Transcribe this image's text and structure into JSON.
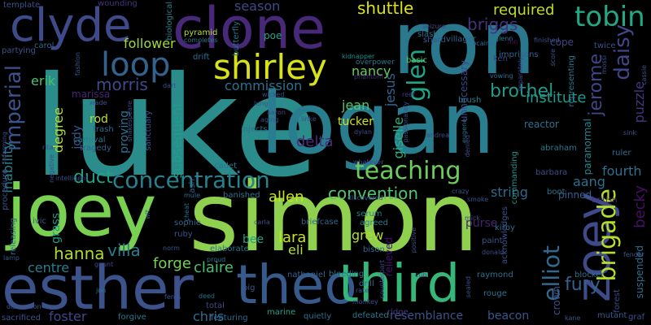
{
  "words": [
    {
      "text": "luke",
      "color": "#2b8c8c"
    },
    {
      "text": "simon",
      "color": "#8fd14f"
    },
    {
      "text": "logan",
      "color": "#287d8e"
    },
    {
      "text": "ron",
      "color": "#2a788e"
    },
    {
      "text": "joey",
      "color": "#7ad151"
    },
    {
      "text": "clone",
      "color": "#482878"
    },
    {
      "text": "clyde",
      "color": "#3e4a89"
    },
    {
      "text": "esther",
      "color": "#3b528b"
    },
    {
      "text": "theo",
      "color": "#375a8c"
    },
    {
      "text": "third",
      "color": "#35b779"
    },
    {
      "text": "zoey",
      "color": "#3e4a89"
    },
    {
      "text": "shirley",
      "color": "#d8e219"
    },
    {
      "text": "loop",
      "color": "#33638d"
    },
    {
      "text": "tobin",
      "color": "#22a884"
    },
    {
      "text": "concentration",
      "color": "#26828e"
    },
    {
      "text": "teaching",
      "color": "#6ccd5a"
    },
    {
      "text": "brigade",
      "color": "#b5de2b"
    },
    {
      "text": "elliot",
      "color": "#31688e"
    },
    {
      "text": "imperial",
      "color": "#3b528b"
    },
    {
      "text": "glen",
      "color": "#20a386"
    },
    {
      "text": "daisy",
      "color": "#404688"
    },
    {
      "text": "jerome",
      "color": "#414487"
    },
    {
      "text": "morris",
      "color": "#3e4a89"
    },
    {
      "text": "commission",
      "color": "#2c728e"
    },
    {
      "text": "brothel",
      "color": "#1f9a8a"
    },
    {
      "text": "institute",
      "color": "#1e9b8a"
    },
    {
      "text": "briggs",
      "color": "#46337e"
    },
    {
      "text": "required",
      "color": "#bddf26"
    },
    {
      "text": "follower",
      "color": "#a0da39"
    },
    {
      "text": "erik",
      "color": "#4ac16d"
    },
    {
      "text": "hanna",
      "color": "#addc30"
    },
    {
      "text": "villa",
      "color": "#287c8e"
    },
    {
      "text": "forge",
      "color": "#75d054"
    },
    {
      "text": "claire",
      "color": "#48c16e"
    },
    {
      "text": "duct",
      "color": "#1fa287"
    },
    {
      "text": "convention",
      "color": "#52c569"
    },
    {
      "text": "fury",
      "color": "#34608d"
    },
    {
      "text": "becky",
      "color": "#471063"
    },
    {
      "text": "aang",
      "color": "#2d708e"
    },
    {
      "text": "string",
      "color": "#30698e"
    },
    {
      "text": "fourth",
      "color": "#2e6f8e"
    },
    {
      "text": "allen",
      "color": "#cde11d"
    },
    {
      "text": "lara",
      "color": "#c8e020"
    },
    {
      "text": "eli",
      "color": "#b8de29"
    },
    {
      "text": "grew",
      "color": "#b2dd2d"
    },
    {
      "text": "bee",
      "color": "#1fa188"
    },
    {
      "text": "delta",
      "color": "#472c7a"
    },
    {
      "text": "nancy",
      "color": "#67cc5c"
    },
    {
      "text": "shuttle",
      "color": "#dde318"
    },
    {
      "text": "season",
      "color": "#3e4989"
    },
    {
      "text": "jesus",
      "color": "#32658e"
    },
    {
      "text": "degree",
      "color": "#b0dd2f"
    },
    {
      "text": "jody",
      "color": "#39568c"
    },
    {
      "text": "rod",
      "color": "#c2df23"
    },
    {
      "text": "inability",
      "color": "#25838e"
    },
    {
      "text": "centre",
      "color": "#287d8e"
    },
    {
      "text": "foster",
      "color": "#3f4788"
    },
    {
      "text": "chris",
      "color": "#2f6c8e"
    },
    {
      "text": "beacon",
      "color": "#39558c"
    },
    {
      "text": "resemblance",
      "color": "#3a548c"
    },
    {
      "text": "proving",
      "color": "#2d718e"
    },
    {
      "text": "subsequent",
      "color": "#1f9e89"
    },
    {
      "text": "jean",
      "color": "#54c568"
    },
    {
      "text": "giselle",
      "color": "#2ab07f"
    },
    {
      "text": "puzzle",
      "color": "#453581"
    },
    {
      "text": "crown",
      "color": "#3c4f8a"
    },
    {
      "text": "marissa",
      "color": "#482475"
    },
    {
      "text": "grass",
      "color": "#1e9c89"
    },
    {
      "text": "tucker",
      "color": "#d0e11c"
    },
    {
      "text": "cope",
      "color": "#414487"
    },
    {
      "text": "twice",
      "color": "#3b528b"
    },
    {
      "text": "purse",
      "color": "#482071"
    },
    {
      "text": "relieved",
      "color": "#440f76"
    },
    {
      "text": "pinned",
      "color": "#355f8d"
    },
    {
      "text": "paranormal",
      "color": "#23898e"
    },
    {
      "text": "suspended",
      "color": "#2d708e"
    },
    {
      "text": "mutant",
      "color": "#38588c"
    },
    {
      "text": "template",
      "color": "#3b528b"
    },
    {
      "text": "wounding",
      "color": "#46327e"
    },
    {
      "text": "biological",
      "color": "#25858e"
    },
    {
      "text": "partying",
      "color": "#3a548c"
    },
    {
      "text": "carol",
      "color": "#31688e"
    },
    {
      "text": "pyramid",
      "color": "#b5de2b"
    },
    {
      "text": "completes",
      "color": "#2a788e"
    },
    {
      "text": "butterfly",
      "color": "#2c718e"
    },
    {
      "text": "poe",
      "color": "#20a386"
    },
    {
      "text": "drift",
      "color": "#2e6e8e"
    },
    {
      "text": "kidnapper",
      "color": "#21918c"
    },
    {
      "text": "phantom",
      "color": "#482878"
    },
    {
      "text": "overpower",
      "color": "#2a768e"
    },
    {
      "text": "villager",
      "color": "#32648e"
    },
    {
      "text": "basic",
      "color": "#5cc863"
    },
    {
      "text": "glenn",
      "color": "#2a788e"
    },
    {
      "text": "ken",
      "color": "#414487"
    },
    {
      "text": "imprisons",
      "color": "#34618d"
    },
    {
      "text": "finished",
      "color": "#3c4f8a"
    },
    {
      "text": "inn",
      "color": "#471365"
    },
    {
      "text": "cocaine",
      "color": "#2e6d8e"
    },
    {
      "text": "seizure",
      "color": "#414487"
    },
    {
      "text": "slash",
      "color": "#2d708e"
    },
    {
      "text": "shard",
      "color": "#39568c"
    },
    {
      "text": "unnecessary",
      "color": "#3f4788"
    },
    {
      "text": "reef",
      "color": "#453882"
    },
    {
      "text": "brush",
      "color": "#26818e"
    },
    {
      "text": "reactor",
      "color": "#2e6f8e"
    },
    {
      "text": "abraham",
      "color": "#2a788e"
    },
    {
      "text": "commanding",
      "color": "#20928c"
    },
    {
      "text": "barbara",
      "color": "#3e4c8a"
    },
    {
      "text": "boot",
      "color": "#2c728e"
    },
    {
      "text": "british",
      "color": "#46337e"
    },
    {
      "text": "ruler",
      "color": "#2e6e8e"
    },
    {
      "text": "fashion",
      "color": "#3b528b"
    },
    {
      "text": "wade",
      "color": "#3a538b"
    },
    {
      "text": "dart",
      "color": "#3c4f8a"
    },
    {
      "text": "lung",
      "color": "#3b528b"
    },
    {
      "text": "wicked",
      "color": "#3e4989"
    },
    {
      "text": "trash",
      "color": "#2e6e8e"
    },
    {
      "text": "shakespeare",
      "color": "#3e4c8a"
    },
    {
      "text": "sanctuary",
      "color": "#3a548c"
    },
    {
      "text": "carnival",
      "color": "#2a788e"
    },
    {
      "text": "tragedy",
      "color": "#355e8d"
    },
    {
      "text": "injects",
      "color": "#2c728e"
    },
    {
      "text": "dylan",
      "color": "#3f4889"
    },
    {
      "text": "cadet",
      "color": "#2d718e"
    },
    {
      "text": "ash",
      "color": "#31688e"
    },
    {
      "text": "mule",
      "color": "#2e6f8e"
    },
    {
      "text": "banished",
      "color": "#2d708e"
    },
    {
      "text": "sophie",
      "color": "#34618d"
    },
    {
      "text": "ruby",
      "color": "#3a548c"
    },
    {
      "text": "norm",
      "color": "#3b528b"
    },
    {
      "text": "elaborate",
      "color": "#2a788e"
    },
    {
      "text": "proud",
      "color": "#2c728e"
    },
    {
      "text": "ivic",
      "color": "#38588c"
    },
    {
      "text": "briefcase",
      "color": "#32658e"
    },
    {
      "text": "serum",
      "color": "#26818e"
    },
    {
      "text": "agreed",
      "color": "#2a788e"
    },
    {
      "text": "bison",
      "color": "#30698e"
    },
    {
      "text": "nathaniel",
      "color": "#33638d"
    },
    {
      "text": "bleeding",
      "color": "#2c728e"
    },
    {
      "text": "drill",
      "color": "#2e6e8e"
    },
    {
      "text": "rate",
      "color": "#3a548c"
    },
    {
      "text": "monkey",
      "color": "#3e4c8a"
    },
    {
      "text": "defeated",
      "color": "#2a788e"
    },
    {
      "text": "cub",
      "color": "#38598c"
    },
    {
      "text": "ridge",
      "color": "#453882"
    },
    {
      "text": "raymond",
      "color": "#2c718e"
    },
    {
      "text": "paint",
      "color": "#3b528b"
    },
    {
      "text": "donald",
      "color": "#3c4f8a"
    },
    {
      "text": "mick",
      "color": "#3e4a89"
    },
    {
      "text": "kirby",
      "color": "#31688e"
    },
    {
      "text": "acknowledges",
      "color": "#3a548c"
    },
    {
      "text": "rouge",
      "color": "#2c728e"
    },
    {
      "text": "blocker",
      "color": "#2e6f8e"
    },
    {
      "text": "kane",
      "color": "#3b528b"
    },
    {
      "text": "forest",
      "color": "#3e4989"
    },
    {
      "text": "graf",
      "color": "#3c4f8a"
    },
    {
      "text": "sacrificed",
      "color": "#3b528b"
    },
    {
      "text": "forgive",
      "color": "#2a788e"
    },
    {
      "text": "featuring",
      "color": "#31688e"
    },
    {
      "text": "quietly",
      "color": "#2e6f8e"
    },
    {
      "text": "marine",
      "color": "#20a386"
    },
    {
      "text": "total",
      "color": "#3e4a89"
    },
    {
      "text": "deed",
      "color": "#2c718e"
    },
    {
      "text": "ferris",
      "color": "#3a548c"
    },
    {
      "text": "pig",
      "color": "#39568c"
    },
    {
      "text": "distraction",
      "color": "#3b528b"
    },
    {
      "text": "lamp",
      "color": "#38588c"
    },
    {
      "text": "releasing",
      "color": "#2e6f8e"
    },
    {
      "text": "procedure",
      "color": "#3b528b"
    },
    {
      "text": "informing",
      "color": "#3e4a89"
    },
    {
      "text": "negative",
      "color": "#3c4f8a"
    },
    {
      "text": "jon",
      "color": "#2a788e"
    },
    {
      "text": "gaunt",
      "color": "#3e4a89"
    },
    {
      "text": "vowing",
      "color": "#2e6e8e"
    },
    {
      "text": "score",
      "color": "#3b528b"
    },
    {
      "text": "separately",
      "color": "#3e4989"
    },
    {
      "text": "representing",
      "color": "#2a788e"
    },
    {
      "text": "mossi",
      "color": "#3c4f8a"
    },
    {
      "text": "cassie",
      "color": "#3b528b"
    },
    {
      "text": "wit",
      "color": "#38588c"
    },
    {
      "text": "cheat",
      "color": "#2e6e8e"
    },
    {
      "text": "intelligent",
      "color": "#3e4a89"
    },
    {
      "text": "rita",
      "color": "#3b528b"
    },
    {
      "text": "sealed",
      "color": "#3c4f8a"
    },
    {
      "text": "counterpart",
      "color": "#3e4a89"
    },
    {
      "text": "positive",
      "color": "#3b528b"
    },
    {
      "text": "passionately",
      "color": "#3c4f8a"
    },
    {
      "text": "andrea",
      "color": "#3e4a89"
    },
    {
      "text": "denied",
      "color": "#3b528b"
    },
    {
      "text": "eugene",
      "color": "#2e6e8e"
    },
    {
      "text": "whatever",
      "color": "#3e4a89"
    },
    {
      "text": "discovered",
      "color": "#3b528b"
    },
    {
      "text": "crazy",
      "color": "#3c4f8a"
    },
    {
      "text": "carla",
      "color": "#3b528b"
    },
    {
      "text": "aaron",
      "color": "#3e4a89"
    },
    {
      "text": "smoke",
      "color": "#3b528b"
    },
    {
      "text": "aging",
      "color": "#3c4f8a"
    },
    {
      "text": "linke",
      "color": "#3e4a89"
    },
    {
      "text": "fender",
      "color": "#3b528b"
    },
    {
      "text": "sink",
      "color": "#3c4f8a"
    }
  ]
}
